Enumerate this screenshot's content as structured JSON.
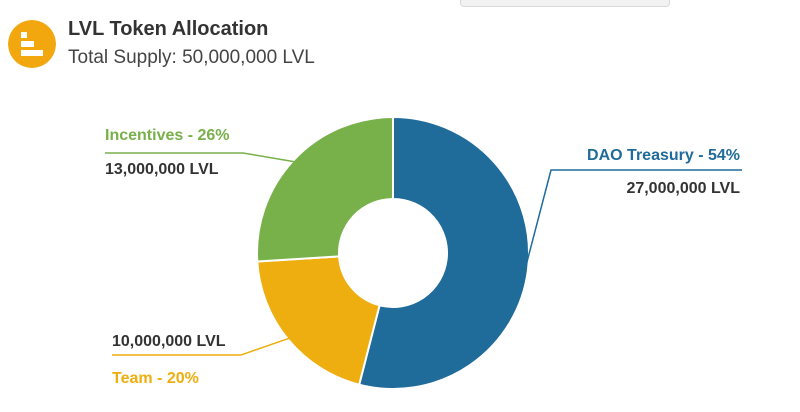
{
  "header": {
    "title": "LVL Token Allocation",
    "subtitle": "Total Supply: 50,000,000 LVL"
  },
  "chart_data": {
    "type": "pie",
    "donut": true,
    "title": "LVL Token Allocation",
    "subtitle": "Total Supply: 50,000,000 LVL",
    "slices": [
      {
        "label": "DAO Treasury - 54%",
        "category": "DAO Treasury",
        "percent": 54,
        "value_text": "27,000,000 LVL",
        "value": 27000000,
        "color": "#1f6b99"
      },
      {
        "label": "Team - 20%",
        "category": "Team",
        "percent": 20,
        "value_text": "10,000,000 LVL",
        "value": 10000000,
        "color": "#eeae0f"
      },
      {
        "label": "Incentives - 26%",
        "category": "Incentives",
        "percent": 26,
        "value_text": "13,000,000 LVL",
        "value": 13000000,
        "color": "#78b04a"
      }
    ]
  }
}
